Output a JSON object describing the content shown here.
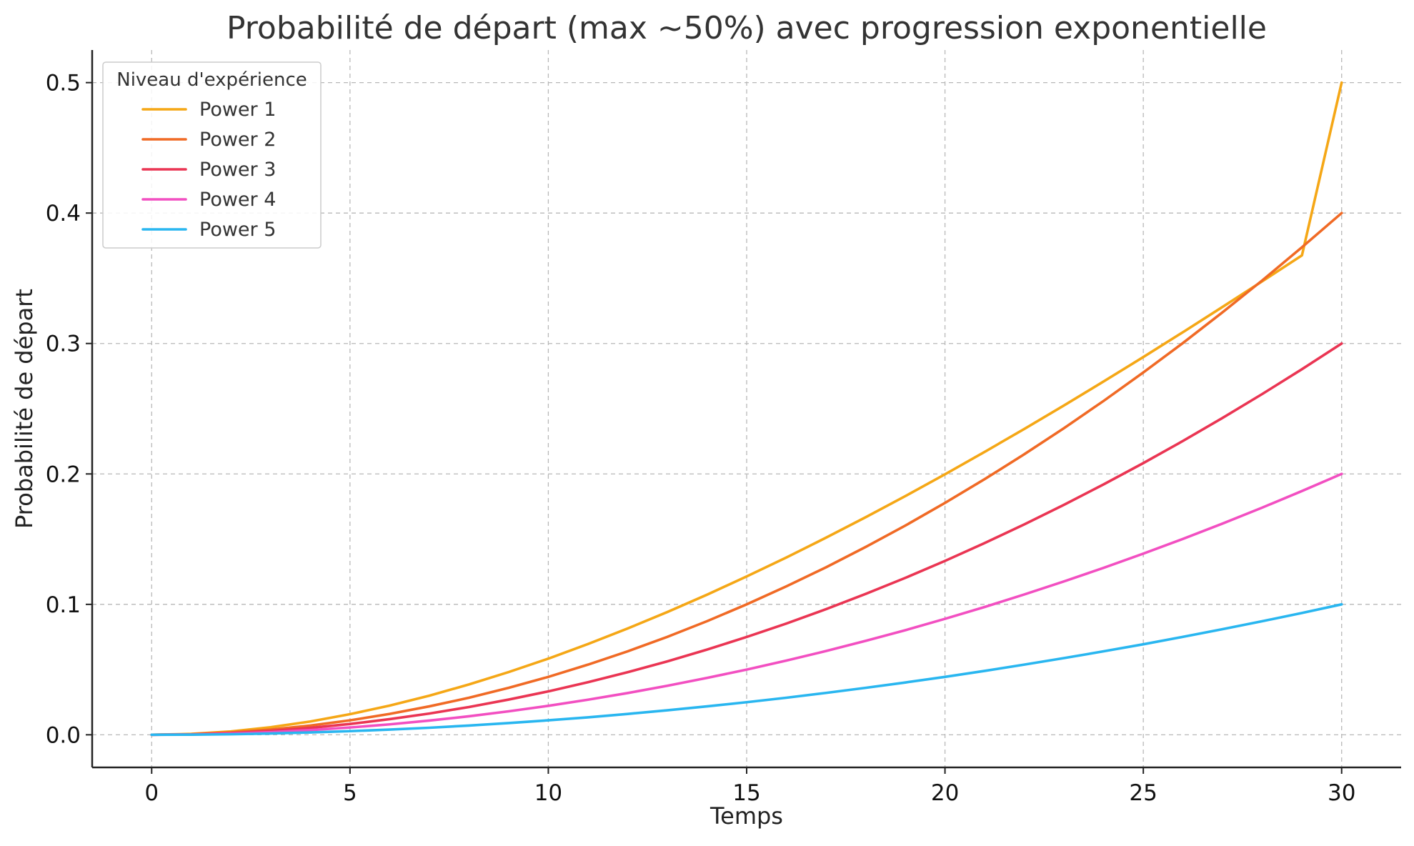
{
  "chart_data": {
    "type": "line",
    "title": "Probabilité de départ (max ~50%) avec progression exponentielle",
    "xlabel": "Temps",
    "ylabel": "Probabilité de départ",
    "xlim": [
      -1.5,
      31.5
    ],
    "ylim": [
      -0.025,
      0.525
    ],
    "x_ticks": [
      0,
      5,
      10,
      15,
      20,
      25,
      30
    ],
    "y_ticks": [
      0.0,
      0.1,
      0.2,
      0.3,
      0.4,
      0.5
    ],
    "y_tick_labels": [
      "0.0",
      "0.1",
      "0.2",
      "0.3",
      "0.4",
      "0.5"
    ],
    "grid": true,
    "legend": {
      "title": "Niveau d'expérience",
      "placement": "top-left"
    },
    "x": [
      0,
      1,
      2,
      3,
      4,
      5,
      6,
      7,
      8,
      9,
      10,
      11,
      12,
      13,
      14,
      15,
      16,
      17,
      18,
      19,
      20,
      21,
      22,
      23,
      24,
      25,
      26,
      27,
      28,
      29,
      30
    ],
    "series": [
      {
        "name": "Power 1",
        "color": "#f5a716",
        "values": [
          0.0,
          0.0007,
          0.0026,
          0.0058,
          0.0102,
          0.0158,
          0.0224,
          0.03,
          0.0386,
          0.0481,
          0.0584,
          0.0696,
          0.0815,
          0.0941,
          0.1074,
          0.1214,
          0.1359,
          0.1511,
          0.1668,
          0.183,
          0.1997,
          0.2169,
          0.2345,
          0.2525,
          0.2709,
          0.2896,
          0.3087,
          0.3281,
          0.3477,
          0.3676,
          0.5
        ]
      },
      {
        "name": "Power 2",
        "color": "#f06a25",
        "values": [
          0.0,
          0.0004,
          0.0018,
          0.004,
          0.0071,
          0.0111,
          0.016,
          0.0218,
          0.0284,
          0.036,
          0.0444,
          0.0538,
          0.064,
          0.0751,
          0.0871,
          0.1,
          0.1138,
          0.1284,
          0.144,
          0.1604,
          0.1778,
          0.196,
          0.2151,
          0.2351,
          0.256,
          0.2778,
          0.3004,
          0.324,
          0.3484,
          0.3738,
          0.4
        ]
      },
      {
        "name": "Power 3",
        "color": "#ea3553",
        "values": [
          0.0,
          0.0003,
          0.0013,
          0.003,
          0.0053,
          0.0083,
          0.012,
          0.0163,
          0.0213,
          0.027,
          0.0333,
          0.0403,
          0.048,
          0.0563,
          0.0653,
          0.075,
          0.0853,
          0.0963,
          0.108,
          0.1203,
          0.1333,
          0.147,
          0.1613,
          0.1763,
          0.192,
          0.2083,
          0.2253,
          0.243,
          0.2613,
          0.2803,
          0.3
        ]
      },
      {
        "name": "Power 4",
        "color": "#f24fc1",
        "values": [
          0.0,
          0.0002,
          0.0009,
          0.002,
          0.0036,
          0.0056,
          0.008,
          0.0109,
          0.0142,
          0.018,
          0.0222,
          0.0269,
          0.032,
          0.0376,
          0.0436,
          0.05,
          0.0569,
          0.0642,
          0.072,
          0.0802,
          0.0889,
          0.098,
          0.1076,
          0.1176,
          0.128,
          0.1389,
          0.1502,
          0.162,
          0.1742,
          0.1869,
          0.2
        ]
      },
      {
        "name": "Power 5",
        "color": "#29b6f0",
        "values": [
          0.0,
          0.0001,
          0.0004,
          0.001,
          0.0018,
          0.0028,
          0.004,
          0.0054,
          0.0071,
          0.009,
          0.0111,
          0.0134,
          0.016,
          0.0188,
          0.0218,
          0.025,
          0.0284,
          0.0321,
          0.036,
          0.0401,
          0.0444,
          0.049,
          0.0538,
          0.0588,
          0.064,
          0.0694,
          0.0751,
          0.081,
          0.0871,
          0.0934,
          0.1
        ]
      }
    ]
  }
}
